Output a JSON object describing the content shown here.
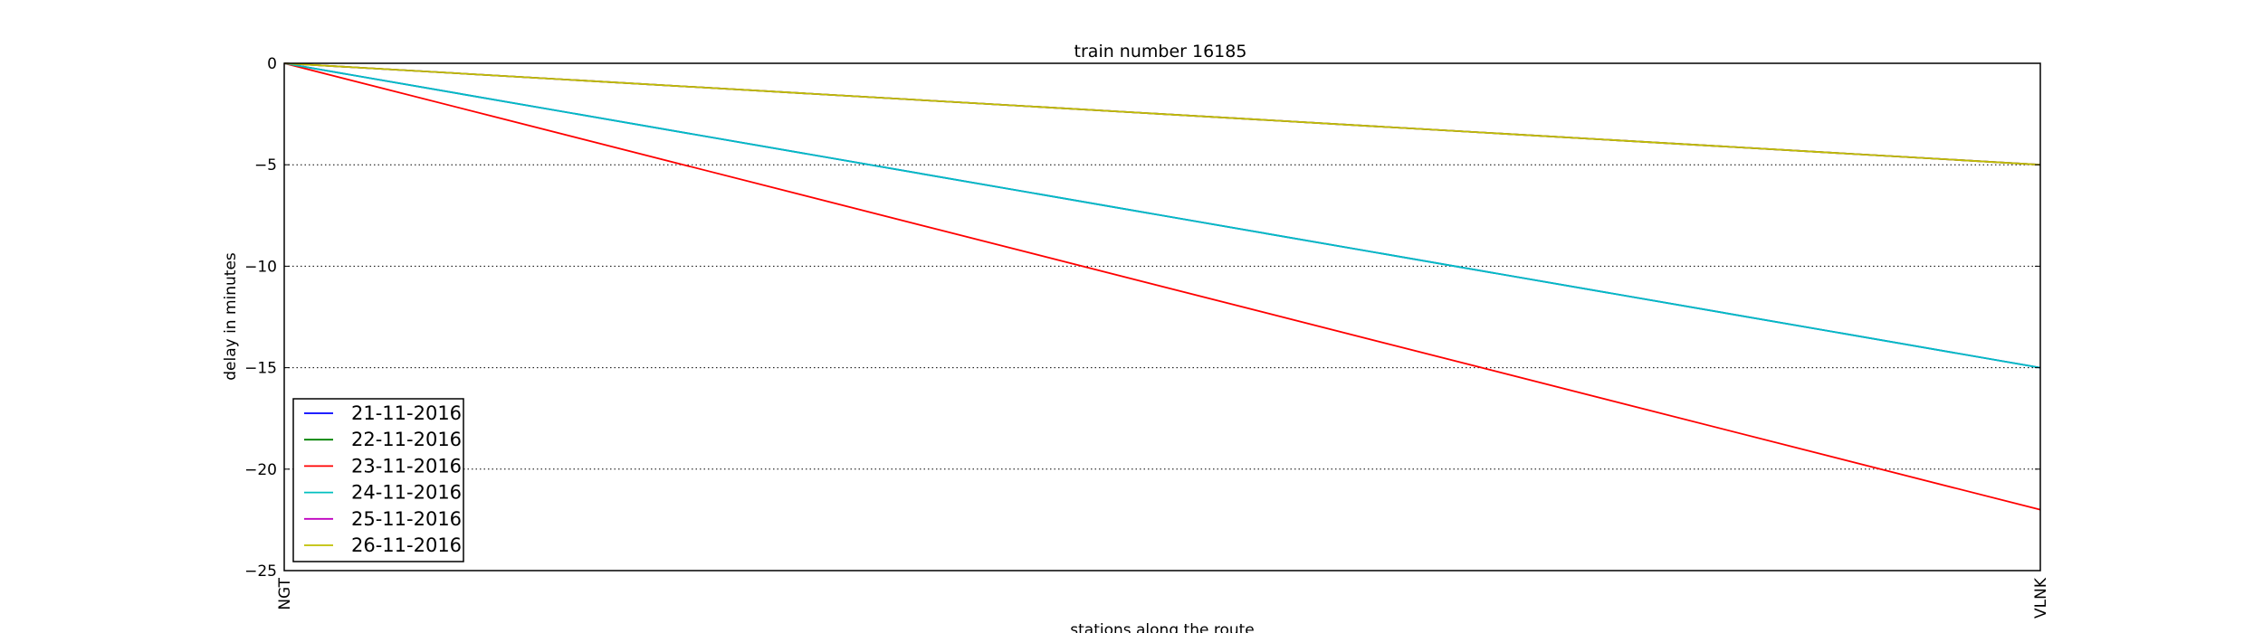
{
  "chart_data": {
    "type": "line",
    "title": "train number 16185",
    "xlabel": "stations along the route",
    "ylabel": "delay in minutes",
    "categories": [
      "NGT",
      "VLNK"
    ],
    "ylim": [
      -25,
      0
    ],
    "yticks": [
      0,
      -5,
      -10,
      -15,
      -20,
      -25
    ],
    "grid": "horizontal dotted",
    "legend_position": "lower-left",
    "series": [
      {
        "name": "21-11-2016",
        "color": "#0000ff",
        "values": [
          0,
          -15
        ]
      },
      {
        "name": "22-11-2016",
        "color": "#008000",
        "values": [
          0,
          -5
        ]
      },
      {
        "name": "23-11-2016",
        "color": "#ff0000",
        "values": [
          0,
          -22
        ]
      },
      {
        "name": "24-11-2016",
        "color": "#00bfbf",
        "values": [
          0,
          -15
        ]
      },
      {
        "name": "25-11-2016",
        "color": "#bf00bf",
        "values": [
          0,
          -5
        ]
      },
      {
        "name": "26-11-2016",
        "color": "#bfbf00",
        "values": [
          0,
          -5
        ]
      }
    ]
  }
}
